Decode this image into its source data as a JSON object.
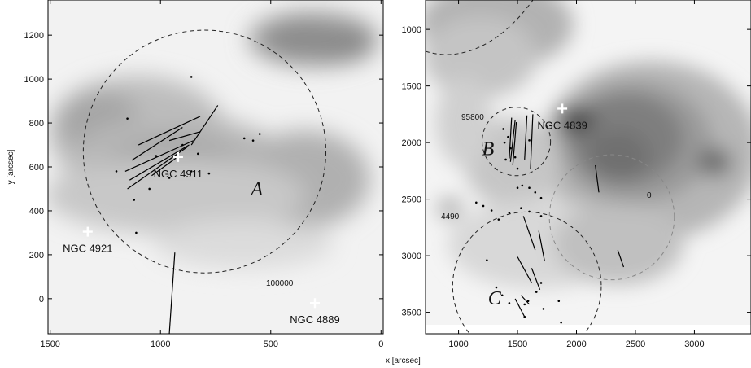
{
  "chart_data": [
    {
      "type": "scatter",
      "panel": "left",
      "ylabel": "y [arcsec]",
      "xlim": [
        1510,
        -10
      ],
      "ylim": [
        1360,
        -160
      ],
      "xticks": [
        1500,
        1000,
        500,
        0
      ],
      "yticks": [
        0,
        200,
        400,
        600,
        800,
        1000,
        1200
      ],
      "galaxies": [
        {
          "name": "NGC 4889",
          "x": 300,
          "y": -20
        },
        {
          "name": "NGC 4921",
          "x": 1330,
          "y": 305
        },
        {
          "name": "NGC 4911",
          "x": 920,
          "y": 645
        }
      ],
      "regions": [
        {
          "label": "A",
          "cx": 800,
          "cy": 670,
          "r": 550
        }
      ],
      "annotations": [
        "100000"
      ],
      "points": [
        [
          1110,
          300
        ],
        [
          1120,
          450
        ],
        [
          1200,
          580
        ],
        [
          1050,
          500
        ],
        [
          960,
          550
        ],
        [
          860,
          580
        ],
        [
          830,
          660
        ],
        [
          1150,
          820
        ],
        [
          860,
          1010
        ],
        [
          780,
          570
        ],
        [
          620,
          730
        ],
        [
          580,
          720
        ],
        [
          550,
          750
        ],
        [
          900,
          700
        ],
        [
          1020,
          650
        ]
      ],
      "segments": [
        [
          [
            1150,
            500
          ],
          [
            880,
            690
          ]
        ],
        [
          [
            1140,
            540
          ],
          [
            870,
            700
          ]
        ],
        [
          [
            1160,
            580
          ],
          [
            850,
            720
          ]
        ],
        [
          [
            1130,
            630
          ],
          [
            900,
            780
          ]
        ],
        [
          [
            1100,
            700
          ],
          [
            820,
            830
          ]
        ],
        [
          [
            1040,
            560
          ],
          [
            930,
            640
          ]
        ],
        [
          [
            860,
            700
          ],
          [
            740,
            880
          ]
        ],
        [
          [
            960,
            720
          ],
          [
            820,
            760
          ]
        ],
        [
          [
            960,
            -160
          ],
          [
            935,
            210
          ]
        ]
      ]
    },
    {
      "type": "scatter",
      "panel": "right",
      "xlabel": "x [arcsec]",
      "xlim": [
        720,
        3480
      ],
      "ylim": [
        740,
        3690
      ],
      "xticks": [
        1000,
        1500,
        2000,
        2500,
        3000
      ],
      "yticks": [
        1000,
        1500,
        2000,
        2500,
        3000,
        3500
      ],
      "galaxies": [
        {
          "name": "NGC 4839",
          "x": 1880,
          "y": 1700
        }
      ],
      "regions": [
        {
          "label": "B",
          "cx": 1490,
          "cy": 1990,
          "r": 290
        },
        {
          "label": "C",
          "cx": 1580,
          "cy": 3270,
          "r": 630
        },
        {
          "label": "",
          "cx": 2300,
          "cy": 2660,
          "r": 530
        }
      ],
      "annotations": [
        "95800",
        "4490",
        "0"
      ],
      "points": [
        [
          1380,
          1880
        ],
        [
          1420,
          1950
        ],
        [
          1440,
          2050
        ],
        [
          1400,
          2150
        ],
        [
          1480,
          2130
        ],
        [
          1500,
          2230
        ],
        [
          1600,
          1980
        ],
        [
          1390,
          2000
        ],
        [
          1500,
          2400
        ],
        [
          1540,
          2380
        ],
        [
          1600,
          2400
        ],
        [
          1650,
          2440
        ],
        [
          1700,
          2490
        ],
        [
          1150,
          2530
        ],
        [
          1210,
          2560
        ],
        [
          1280,
          2600
        ],
        [
          1340,
          2680
        ],
        [
          1430,
          2620
        ],
        [
          1530,
          2580
        ],
        [
          1600,
          2610
        ],
        [
          1700,
          2650
        ],
        [
          1240,
          3040
        ],
        [
          1320,
          3280
        ],
        [
          1370,
          3350
        ],
        [
          1430,
          3420
        ],
        [
          1560,
          3430
        ],
        [
          1590,
          3400
        ],
        [
          1660,
          3320
        ],
        [
          1700,
          3240
        ],
        [
          1560,
          3540
        ],
        [
          1720,
          3470
        ],
        [
          1850,
          3400
        ],
        [
          1870,
          3590
        ]
      ],
      "segments": [
        [
          [
            1450,
            1780
          ],
          [
            1430,
            2140
          ]
        ],
        [
          [
            1480,
            1800
          ],
          [
            1440,
            2170
          ]
        ],
        [
          [
            1490,
            1820
          ],
          [
            1460,
            2200
          ]
        ],
        [
          [
            1580,
            1760
          ],
          [
            1560,
            2150
          ]
        ],
        [
          [
            1630,
            1750
          ],
          [
            1610,
            2230
          ]
        ],
        [
          [
            1550,
            2650
          ],
          [
            1650,
            2950
          ]
        ],
        [
          [
            1680,
            2780
          ],
          [
            1730,
            3050
          ]
        ],
        [
          [
            1500,
            3010
          ],
          [
            1620,
            3240
          ]
        ],
        [
          [
            1620,
            3110
          ],
          [
            1690,
            3300
          ]
        ],
        [
          [
            1480,
            3380
          ],
          [
            1560,
            3540
          ]
        ],
        [
          [
            1530,
            3350
          ],
          [
            1600,
            3430
          ]
        ],
        [
          [
            2160,
            2200
          ],
          [
            2190,
            2440
          ]
        ],
        [
          [
            2350,
            2950
          ],
          [
            2400,
            3100
          ]
        ]
      ]
    }
  ]
}
